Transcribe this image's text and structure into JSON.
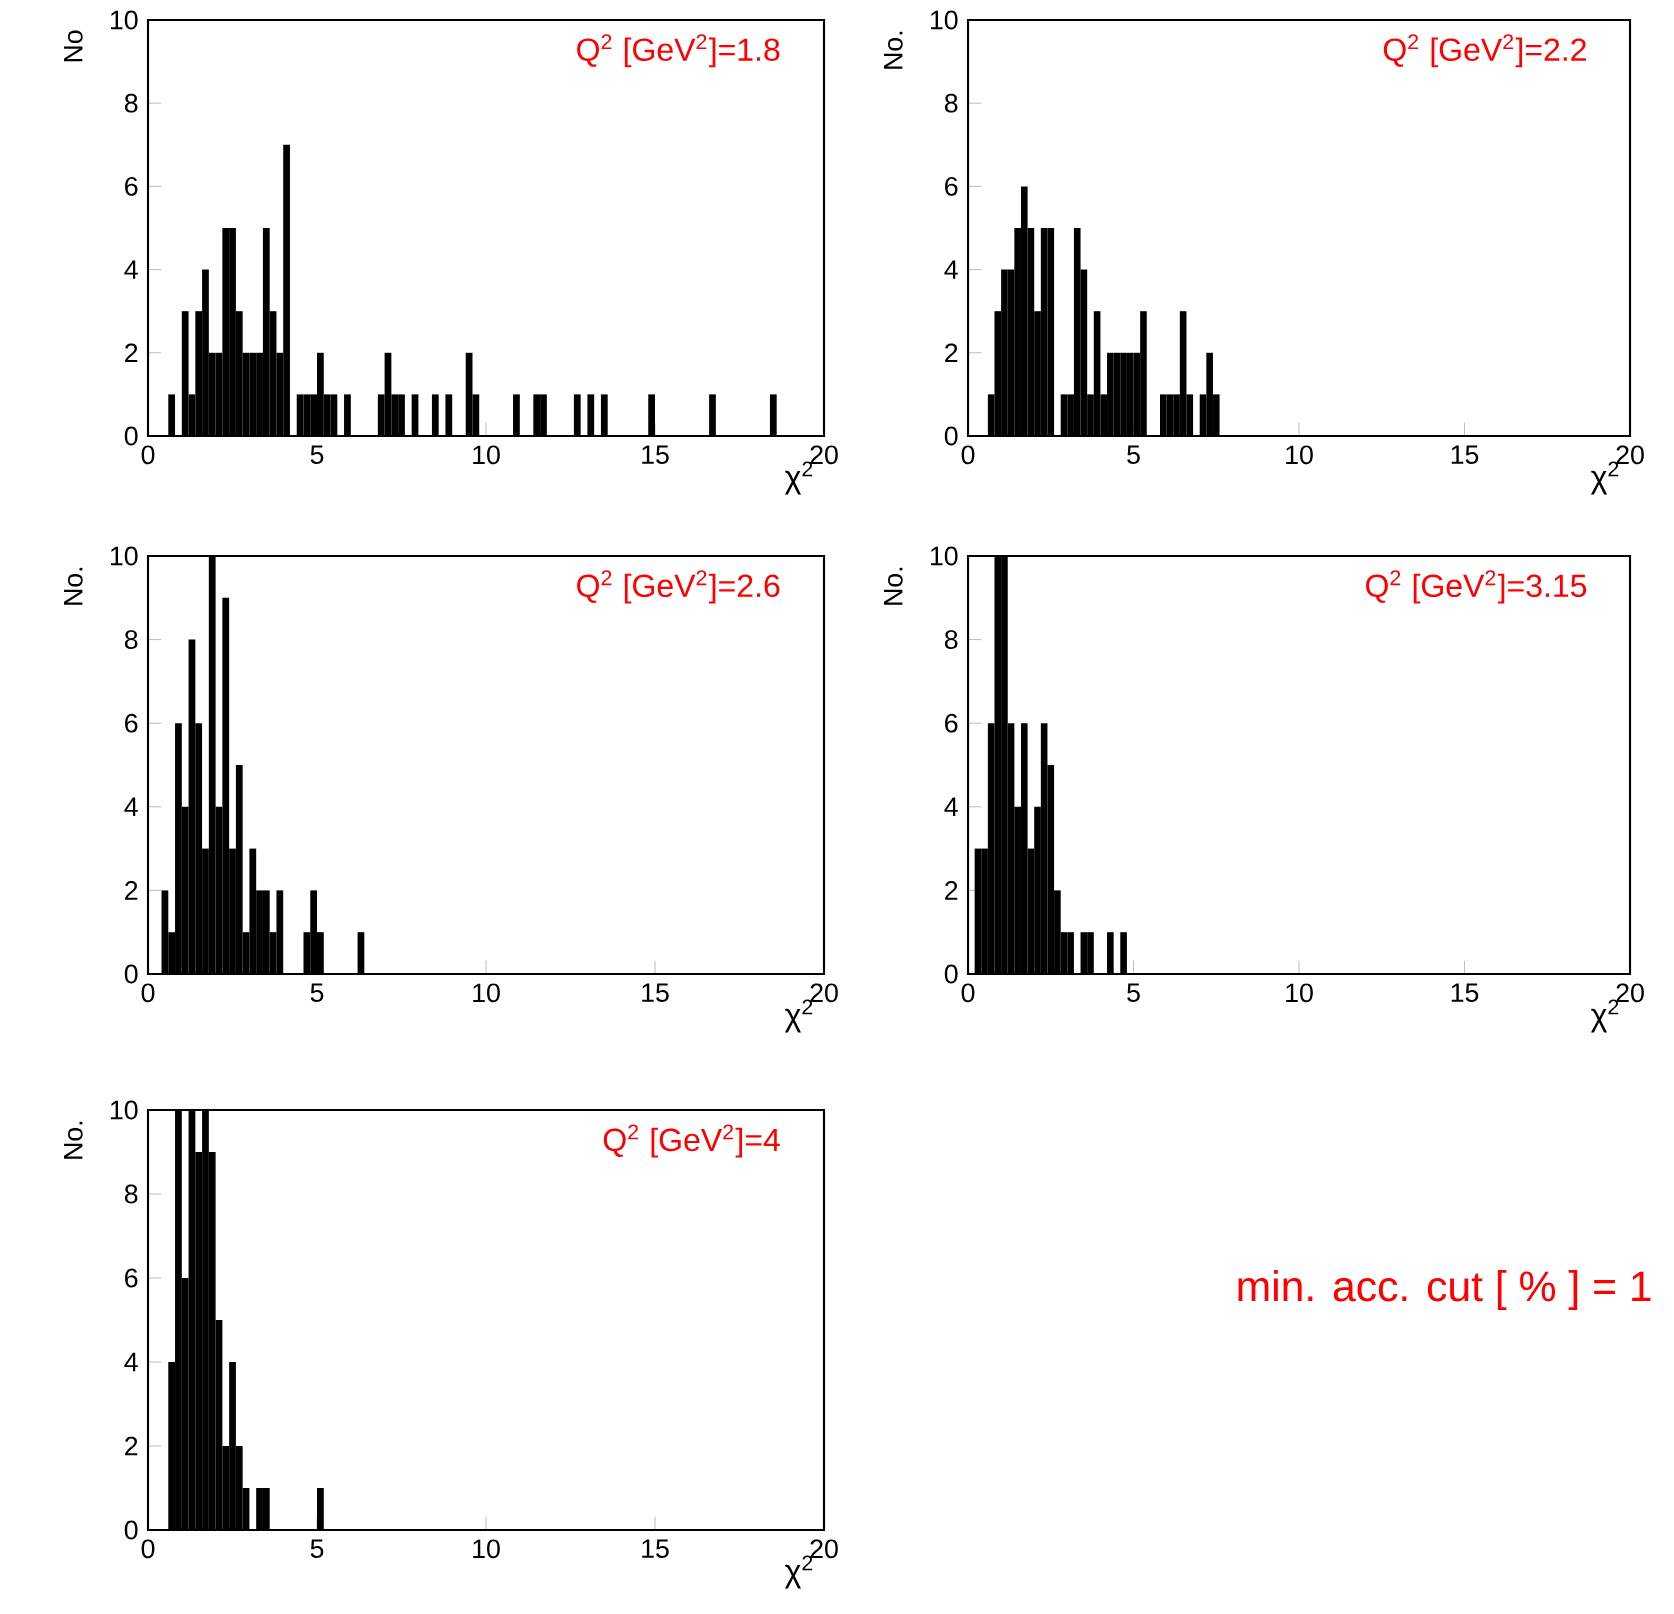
{
  "chart_data": [
    {
      "type": "histogram",
      "title": "Q$^{2}$ [GeV$^{2}$]=1.8",
      "xlabel": "χ$^{2}$",
      "ylabel": "No",
      "color": "#000000",
      "xlim": [
        0,
        20
      ],
      "ylim": [
        0,
        10
      ],
      "xticks": [
        0,
        5,
        10,
        15,
        20
      ],
      "yticks": [
        0,
        2,
        4,
        6,
        8,
        10
      ],
      "bins": [
        0,
        0.2,
        0.4,
        0.6,
        0.8,
        1,
        1.2,
        1.4,
        1.6,
        1.8,
        2,
        2.2,
        2.4,
        2.6,
        2.8,
        3,
        3.2,
        3.4,
        3.6,
        3.8,
        4,
        4.2,
        4.4,
        4.6,
        4.8,
        5,
        5.2,
        5.4,
        5.6,
        5.8,
        6,
        6.2,
        6.4,
        6.6,
        6.8,
        7,
        7.2,
        7.4,
        7.6,
        7.8,
        8,
        8.2,
        8.4,
        8.6,
        8.8,
        9,
        9.2,
        9.4,
        9.6,
        9.8,
        10,
        10.2,
        10.4,
        10.6,
        10.8,
        11,
        11.2,
        11.4,
        11.6,
        11.8,
        12,
        12.2,
        12.4,
        12.6,
        12.8,
        13,
        13.2,
        13.4,
        13.6,
        13.8,
        14,
        14.2,
        14.4,
        14.6,
        14.8,
        15,
        15.2,
        15.4,
        15.6,
        15.8,
        16,
        16.2,
        16.4,
        16.6,
        16.8,
        17,
        17.2,
        17.4,
        17.6,
        17.8,
        18,
        18.2,
        18.4,
        18.6
      ],
      "values": [
        0,
        0,
        0,
        1,
        0,
        3,
        1,
        3,
        4,
        2,
        2,
        5,
        5,
        3,
        2,
        2,
        2,
        5,
        3,
        2,
        7,
        0,
        1,
        1,
        1,
        2,
        1,
        1,
        0,
        1,
        0,
        0,
        0,
        0,
        1,
        2,
        1,
        1,
        0,
        1,
        0,
        0,
        1,
        0,
        1,
        0,
        0,
        2,
        1,
        0,
        0,
        0,
        0,
        0,
        1,
        0,
        0,
        1,
        1,
        0,
        0,
        0,
        0,
        1,
        0,
        1,
        0,
        1,
        0,
        0,
        0,
        0,
        0,
        0,
        1,
        0,
        0,
        0,
        0,
        0,
        0,
        0,
        0,
        1,
        0,
        0,
        0,
        0,
        0,
        0,
        0,
        0,
        1
      ]
    },
    {
      "type": "histogram",
      "title": "Q$^{2}$ [GeV$^{2}$]=2.2",
      "xlabel": "χ$^{2}$",
      "ylabel": "No.",
      "color": "#000000",
      "xlim": [
        0,
        20
      ],
      "ylim": [
        0,
        10
      ],
      "xticks": [
        0,
        5,
        10,
        15,
        20
      ],
      "yticks": [
        0,
        2,
        4,
        6,
        8,
        10
      ],
      "bins": [
        0,
        0.2,
        0.4,
        0.6,
        0.8,
        1,
        1.2,
        1.4,
        1.6,
        1.8,
        2,
        2.2,
        2.4,
        2.6,
        2.8,
        3,
        3.2,
        3.4,
        3.6,
        3.8,
        4,
        4.2,
        4.4,
        4.6,
        4.8,
        5,
        5.2,
        5.4,
        5.6,
        5.8,
        6,
        6.2,
        6.4,
        6.6,
        6.8,
        7,
        7.2,
        7.4,
        7.6
      ],
      "values": [
        0,
        0,
        0,
        1,
        3,
        4,
        4,
        5,
        6,
        5,
        3,
        5,
        5,
        0,
        1,
        1,
        5,
        4,
        1,
        3,
        1,
        2,
        2,
        2,
        2,
        2,
        3,
        0,
        0,
        1,
        1,
        1,
        3,
        1,
        0,
        1,
        2,
        1
      ]
    },
    {
      "type": "histogram",
      "title": "Q$^{2}$ [GeV$^{2}$]=2.6",
      "xlabel": "χ$^{2}$",
      "ylabel": "No.",
      "color": "#000000",
      "xlim": [
        0,
        20
      ],
      "ylim": [
        0,
        10
      ],
      "xticks": [
        0,
        5,
        10,
        15,
        20
      ],
      "yticks": [
        0,
        2,
        4,
        6,
        8,
        10
      ],
      "bins": [
        0,
        0.2,
        0.4,
        0.6,
        0.8,
        1,
        1.2,
        1.4,
        1.6,
        1.8,
        2,
        2.2,
        2.4,
        2.6,
        2.8,
        3,
        3.2,
        3.4,
        3.6,
        3.8,
        4,
        4.2,
        4.4,
        4.6,
        4.8,
        5,
        5.2,
        5.4,
        5.6,
        5.8,
        6,
        6.2,
        6.4
      ],
      "values": [
        0,
        0,
        2,
        1,
        6,
        4,
        8,
        6,
        3,
        10,
        4,
        9,
        3,
        5,
        1,
        3,
        2,
        2,
        1,
        2,
        0,
        0,
        0,
        1,
        2,
        1,
        0,
        0,
        0,
        0,
        0,
        1
      ]
    },
    {
      "type": "histogram",
      "title": "Q$^{2}$ [GeV$^{2}$]=3.15",
      "xlabel": "χ$^{2}$",
      "ylabel": "No.",
      "color": "#000000",
      "xlim": [
        0,
        20
      ],
      "ylim": [
        0,
        10
      ],
      "xticks": [
        0,
        5,
        10,
        15,
        20
      ],
      "yticks": [
        0,
        2,
        4,
        6,
        8,
        10
      ],
      "bins": [
        0,
        0.2,
        0.4,
        0.6,
        0.8,
        1,
        1.2,
        1.4,
        1.6,
        1.8,
        2,
        2.2,
        2.4,
        2.6,
        2.8,
        3,
        3.2,
        3.4,
        3.6,
        3.8,
        4,
        4.2,
        4.4,
        4.6,
        4.8
      ],
      "values": [
        0,
        3,
        3,
        6,
        10,
        10,
        6,
        4,
        6,
        3,
        4,
        6,
        5,
        2,
        1,
        1,
        0,
        1,
        1,
        0,
        0,
        1,
        0,
        1
      ]
    },
    {
      "type": "histogram",
      "title": "Q$^{2}$ [GeV$^{2}$]=4",
      "xlabel": "χ$^{2}$",
      "ylabel": "No.",
      "color": "#000000",
      "xlim": [
        0,
        20
      ],
      "ylim": [
        0,
        10
      ],
      "xticks": [
        0,
        5,
        10,
        15,
        20
      ],
      "yticks": [
        0,
        2,
        4,
        6,
        8,
        10
      ],
      "bins": [
        0,
        0.2,
        0.4,
        0.6,
        0.8,
        1,
        1.2,
        1.4,
        1.6,
        1.8,
        2,
        2.2,
        2.4,
        2.6,
        2.8,
        3,
        3.2,
        3.4,
        3.6,
        3.8,
        4,
        4.2,
        4.4,
        4.6,
        4.8,
        5,
        5.2
      ],
      "values": [
        0,
        0,
        0,
        4,
        10,
        6,
        10,
        9,
        10,
        9,
        5,
        2,
        4,
        2,
        1,
        0,
        1,
        1,
        0,
        0,
        0,
        0,
        0,
        0,
        0,
        1
      ],
      "annotations": [
        "min. acc. cut [ % ] = 1"
      ]
    }
  ]
}
